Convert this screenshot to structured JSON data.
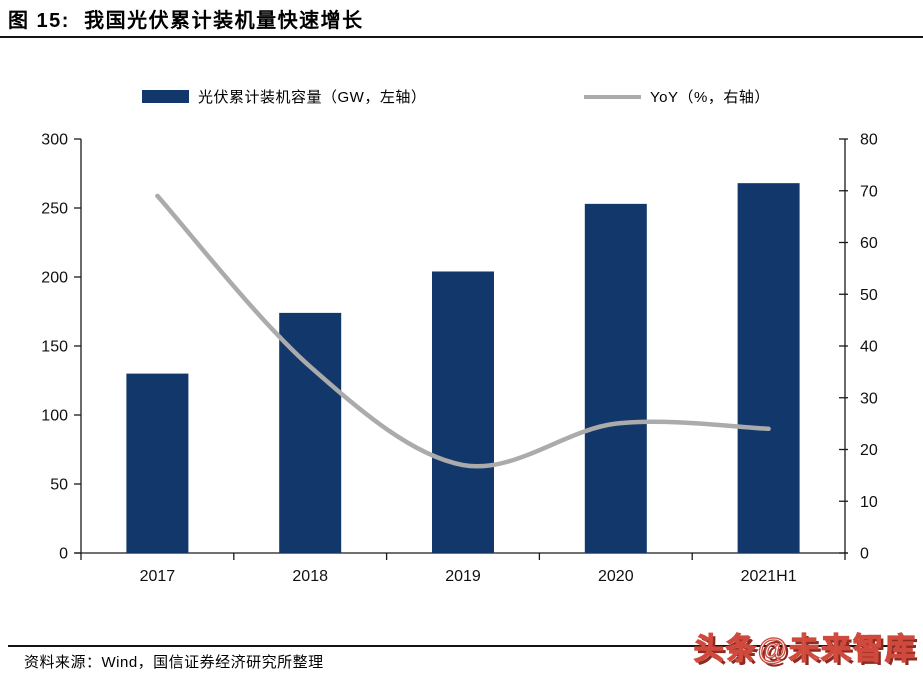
{
  "figure": {
    "title": "图 15:  我国光伏累计装机量快速增长"
  },
  "legend": [
    {
      "label": "光伏累计装机容量（GW，左轴）",
      "swatch": "bar-swatch",
      "color": "#12386B"
    },
    {
      "label": "YoY（%，右轴）",
      "swatch": "line-swatch",
      "color": "#ABABAB"
    }
  ],
  "chart_data": {
    "type": "bar",
    "categories": [
      "2017",
      "2018",
      "2019",
      "2020",
      "2021H1"
    ],
    "series": [
      {
        "name": "光伏累计装机容量（GW，左轴）",
        "type": "bar",
        "axis": "left",
        "color": "#12386B",
        "values": [
          130,
          174,
          204,
          253,
          268
        ]
      },
      {
        "name": "YoY（%，右轴）",
        "type": "line",
        "axis": "right",
        "color": "#ABABAB",
        "values": [
          69,
          36,
          17,
          25,
          24
        ]
      }
    ],
    "title": "我国光伏累计装机量快速增长",
    "xlabel": "",
    "ylabel_left": "GW",
    "ylabel_right": "%",
    "left_axis": {
      "min": 0,
      "max": 300,
      "step": 50
    },
    "right_axis": {
      "min": 0,
      "max": 80,
      "step": 10
    },
    "grid": false,
    "legend_position": "top",
    "line_smooth": true
  },
  "source": {
    "text": "资料来源：Wind，国信证券经济研究所整理"
  },
  "watermark": {
    "text": "头条@未来智库",
    "color": "#CF4A3D"
  }
}
